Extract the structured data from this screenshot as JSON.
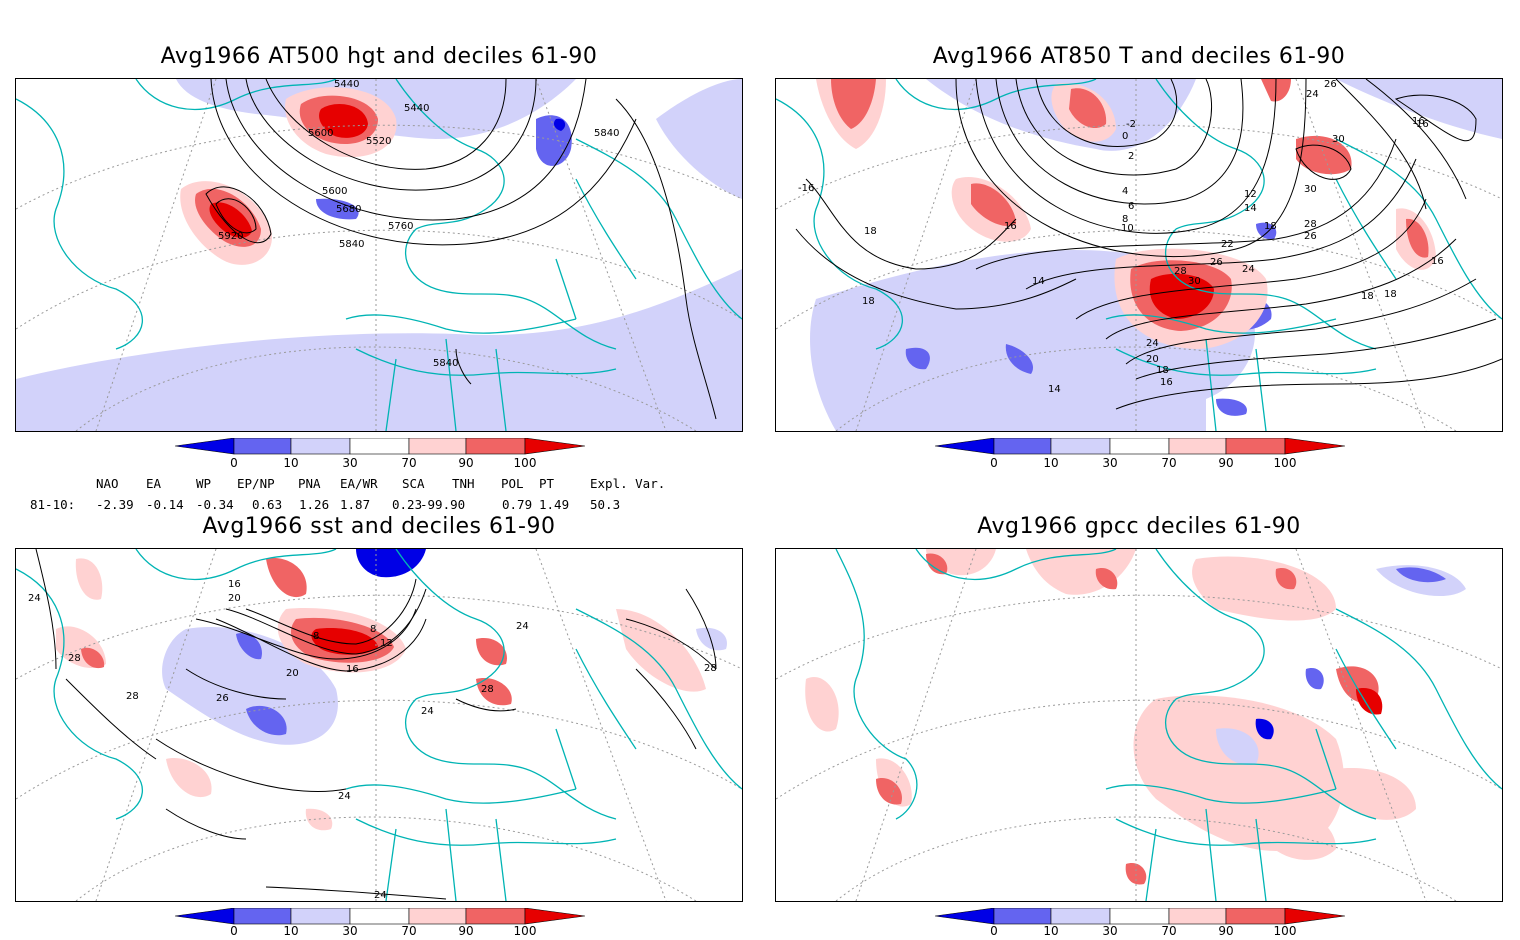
{
  "panels": [
    {
      "title": "Avg1966 AT500 hgt and deciles 61-90",
      "contour_labels": [
        "5440",
        "5440",
        "5600",
        "5520",
        "5840",
        "5600",
        "5680",
        "5760",
        "5840",
        "5920",
        "5840"
      ]
    },
    {
      "title": "Avg1966 AT850 T and deciles 61-90",
      "contour_labels": [
        "-2",
        "0",
        "2",
        "4",
        "6",
        "8",
        "10",
        "12",
        "14",
        "16",
        "16",
        "16",
        "18",
        "18",
        "18",
        "22",
        "24",
        "26",
        "26",
        "28",
        "28",
        "30",
        "30",
        "24",
        "20",
        "18",
        "16",
        "14",
        "14",
        "-16",
        "18",
        "18",
        "16",
        "30",
        "24",
        "26"
      ]
    },
    {
      "title": "Avg1966 sst and deciles 61-90",
      "contour_labels": [
        "24",
        "28",
        "28",
        "26",
        "20",
        "16",
        "12",
        "8",
        "8",
        "24",
        "24",
        "28",
        "28",
        "24",
        "24",
        "16",
        "20"
      ]
    },
    {
      "title": "Avg1966 gpcc deciles 61-90",
      "contour_labels": []
    }
  ],
  "colorbar": {
    "ticks": [
      "0",
      "10",
      "30",
      "70",
      "90",
      "100"
    ],
    "colors": [
      "#0000e6",
      "#6464f0",
      "#d2d2fa",
      "#ffffff",
      "#ffd2d2",
      "#f06464",
      "#e60000"
    ]
  },
  "indices": {
    "headers": [
      "NAO",
      "EA",
      "WP",
      "EP/NP",
      "PNA",
      "EA/WR",
      "SCA",
      "TNH",
      "POL",
      "PT",
      "Expl. Var."
    ],
    "row_label": "81-10:",
    "values": [
      "-2.39",
      "-0.14",
      "-0.34",
      "0.63",
      "1.26",
      "1.87",
      "0.23",
      "-99.90",
      "0.79",
      "1.49",
      "50.3"
    ]
  },
  "map_colors": {
    "coast": "#00b4b4",
    "contour": "#000000",
    "grid": "#9a9a9a"
  }
}
